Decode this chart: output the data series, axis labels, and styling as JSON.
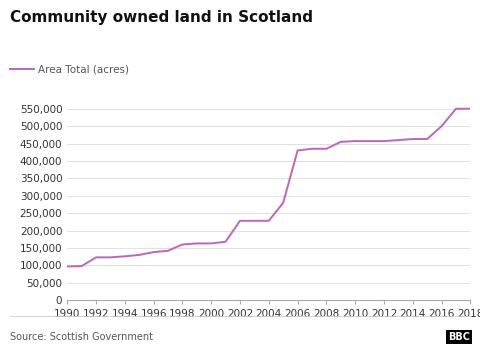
{
  "title": "Community owned land in Scotland",
  "legend_label": "Area Total (acres)",
  "source": "Source: Scottish Government",
  "line_color": "#bb66bb",
  "background_color": "#ffffff",
  "years": [
    1990,
    1991,
    1992,
    1993,
    1994,
    1995,
    1996,
    1997,
    1998,
    1999,
    2000,
    2001,
    2002,
    2003,
    2004,
    2005,
    2006,
    2007,
    2008,
    2009,
    2010,
    2011,
    2012,
    2013,
    2014,
    2015,
    2016,
    2017,
    2018
  ],
  "values": [
    97000,
    98000,
    123000,
    123000,
    126000,
    130000,
    138000,
    142000,
    160000,
    163000,
    163000,
    168000,
    228000,
    228000,
    228000,
    280000,
    430000,
    435000,
    435000,
    455000,
    457000,
    457000,
    457000,
    460000,
    463000,
    463000,
    500000,
    550000,
    550000
  ],
  "xlim": [
    1990,
    2018
  ],
  "ylim": [
    0,
    575000
  ],
  "yticks": [
    0,
    50000,
    100000,
    150000,
    200000,
    250000,
    300000,
    350000,
    400000,
    450000,
    500000,
    550000
  ],
  "xticks": [
    1990,
    1992,
    1994,
    1996,
    1998,
    2000,
    2002,
    2004,
    2006,
    2008,
    2010,
    2012,
    2014,
    2016,
    2018
  ],
  "title_fontsize": 11,
  "tick_fontsize": 7.5,
  "legend_fontsize": 7.5,
  "source_fontsize": 7,
  "line_width": 1.4
}
